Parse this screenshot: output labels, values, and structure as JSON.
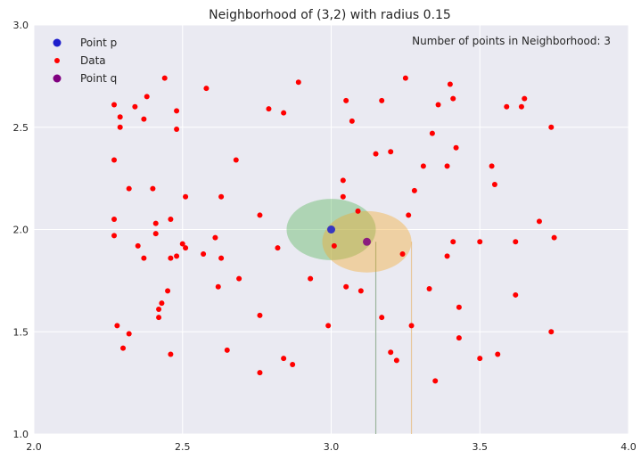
{
  "chart_data": {
    "type": "scatter",
    "title": "Neighborhood of (3,2) with radius 0.15",
    "xlabel": "",
    "ylabel": "",
    "xlim": [
      2.0,
      4.0
    ],
    "ylim": [
      1.0,
      3.0
    ],
    "xticks": [
      "2.0",
      "2.5",
      "3.0",
      "3.5",
      "4.0"
    ],
    "yticks": [
      "1.0",
      "1.5",
      "2.0",
      "2.5",
      "3.0"
    ],
    "grid": true,
    "legend_position": "top-left",
    "annotation": "Number of points in Neighborhood: 3",
    "colors": {
      "background": "#eaeaf2",
      "grid": "#ffffff",
      "data": "#ff0000",
      "point_p": "#1f1fcc",
      "point_q": "#800080",
      "neighborhood_p": "#4caf50",
      "neighborhood_q": "#f5a623"
    },
    "series": [
      {
        "name": "Point p",
        "color": "#1f1fcc",
        "points": [
          {
            "x": 3.0,
            "y": 2.0
          }
        ]
      },
      {
        "name": "Data",
        "color": "#ff0000",
        "points": [
          {
            "x": 2.27,
            "y": 2.61
          },
          {
            "x": 2.29,
            "y": 2.55
          },
          {
            "x": 2.29,
            "y": 2.5
          },
          {
            "x": 2.34,
            "y": 2.6
          },
          {
            "x": 2.37,
            "y": 2.54
          },
          {
            "x": 2.38,
            "y": 2.65
          },
          {
            "x": 2.44,
            "y": 2.74
          },
          {
            "x": 2.48,
            "y": 2.58
          },
          {
            "x": 2.48,
            "y": 2.49
          },
          {
            "x": 2.58,
            "y": 2.69
          },
          {
            "x": 2.27,
            "y": 2.34
          },
          {
            "x": 2.32,
            "y": 2.2
          },
          {
            "x": 2.4,
            "y": 2.2
          },
          {
            "x": 2.51,
            "y": 2.16
          },
          {
            "x": 2.63,
            "y": 2.16
          },
          {
            "x": 2.68,
            "y": 2.34
          },
          {
            "x": 2.27,
            "y": 2.05
          },
          {
            "x": 2.27,
            "y": 1.97
          },
          {
            "x": 2.35,
            "y": 1.92
          },
          {
            "x": 2.37,
            "y": 1.86
          },
          {
            "x": 2.41,
            "y": 2.03
          },
          {
            "x": 2.41,
            "y": 1.98
          },
          {
            "x": 2.46,
            "y": 2.05
          },
          {
            "x": 2.46,
            "y": 1.86
          },
          {
            "x": 2.48,
            "y": 1.87
          },
          {
            "x": 2.5,
            "y": 1.93
          },
          {
            "x": 2.51,
            "y": 1.91
          },
          {
            "x": 2.57,
            "y": 1.88
          },
          {
            "x": 2.61,
            "y": 1.96
          },
          {
            "x": 2.63,
            "y": 1.86
          },
          {
            "x": 2.62,
            "y": 1.72
          },
          {
            "x": 2.69,
            "y": 1.76
          },
          {
            "x": 2.45,
            "y": 1.7
          },
          {
            "x": 2.43,
            "y": 1.64
          },
          {
            "x": 2.42,
            "y": 1.61
          },
          {
            "x": 2.42,
            "y": 1.57
          },
          {
            "x": 2.28,
            "y": 1.53
          },
          {
            "x": 2.32,
            "y": 1.49
          },
          {
            "x": 2.3,
            "y": 1.42
          },
          {
            "x": 2.46,
            "y": 1.39
          },
          {
            "x": 2.65,
            "y": 1.41
          },
          {
            "x": 2.76,
            "y": 2.07
          },
          {
            "x": 2.82,
            "y": 1.91
          },
          {
            "x": 2.76,
            "y": 1.58
          },
          {
            "x": 2.76,
            "y": 1.3
          },
          {
            "x": 2.84,
            "y": 1.37
          },
          {
            "x": 2.87,
            "y": 1.34
          },
          {
            "x": 2.79,
            "y": 2.59
          },
          {
            "x": 2.84,
            "y": 2.57
          },
          {
            "x": 2.89,
            "y": 2.72
          },
          {
            "x": 2.93,
            "y": 1.76
          },
          {
            "x": 2.99,
            "y": 1.53
          },
          {
            "x": 3.01,
            "y": 1.92
          },
          {
            "x": 3.04,
            "y": 2.24
          },
          {
            "x": 3.04,
            "y": 2.16
          },
          {
            "x": 3.05,
            "y": 2.63
          },
          {
            "x": 3.07,
            "y": 2.53
          },
          {
            "x": 3.09,
            "y": 2.09
          },
          {
            "x": 3.05,
            "y": 1.72
          },
          {
            "x": 3.1,
            "y": 1.7
          },
          {
            "x": 3.17,
            "y": 2.63
          },
          {
            "x": 3.15,
            "y": 2.37
          },
          {
            "x": 3.2,
            "y": 2.38
          },
          {
            "x": 3.17,
            "y": 1.57
          },
          {
            "x": 3.2,
            "y": 1.4
          },
          {
            "x": 3.22,
            "y": 1.36
          },
          {
            "x": 3.24,
            "y": 1.88
          },
          {
            "x": 3.26,
            "y": 2.07
          },
          {
            "x": 3.28,
            "y": 2.19
          },
          {
            "x": 3.27,
            "y": 1.53
          },
          {
            "x": 3.25,
            "y": 2.74
          },
          {
            "x": 3.31,
            "y": 2.31
          },
          {
            "x": 3.34,
            "y": 2.47
          },
          {
            "x": 3.36,
            "y": 2.61
          },
          {
            "x": 3.33,
            "y": 1.71
          },
          {
            "x": 3.35,
            "y": 1.26
          },
          {
            "x": 3.39,
            "y": 2.31
          },
          {
            "x": 3.4,
            "y": 2.71
          },
          {
            "x": 3.41,
            "y": 2.64
          },
          {
            "x": 3.42,
            "y": 2.4
          },
          {
            "x": 3.41,
            "y": 1.94
          },
          {
            "x": 3.39,
            "y": 1.87
          },
          {
            "x": 3.43,
            "y": 1.62
          },
          {
            "x": 3.43,
            "y": 1.47
          },
          {
            "x": 3.5,
            "y": 1.94
          },
          {
            "x": 3.5,
            "y": 1.37
          },
          {
            "x": 3.54,
            "y": 2.31
          },
          {
            "x": 3.55,
            "y": 2.22
          },
          {
            "x": 3.56,
            "y": 1.39
          },
          {
            "x": 3.59,
            "y": 2.6
          },
          {
            "x": 3.62,
            "y": 1.94
          },
          {
            "x": 3.62,
            "y": 1.68
          },
          {
            "x": 3.64,
            "y": 2.6
          },
          {
            "x": 3.65,
            "y": 2.64
          },
          {
            "x": 3.7,
            "y": 2.04
          },
          {
            "x": 3.74,
            "y": 2.5
          },
          {
            "x": 3.75,
            "y": 1.96
          },
          {
            "x": 3.74,
            "y": 1.5
          }
        ]
      },
      {
        "name": "Point q",
        "color": "#800080",
        "points": [
          {
            "x": 3.12,
            "y": 1.94
          }
        ]
      }
    ],
    "neighborhoods": [
      {
        "center": {
          "x": 3.0,
          "y": 2.0
        },
        "radius": 0.15,
        "color": "#4caf50"
      },
      {
        "center": {
          "x": 3.12,
          "y": 1.94
        },
        "radius": 0.15,
        "color": "#f5a623"
      }
    ],
    "vertical_lines": [
      {
        "x": 3.15,
        "y_from": 1.0,
        "y_to": 1.94,
        "color": "#9cb59c"
      },
      {
        "x": 3.27,
        "y_from": 1.0,
        "y_to": 1.94,
        "color": "#e8c79a"
      }
    ]
  }
}
